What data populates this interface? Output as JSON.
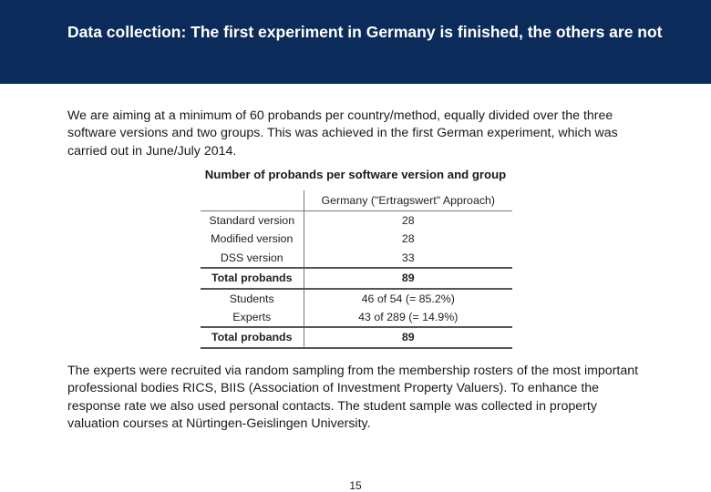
{
  "header": {
    "title": "Data collection: The first experiment in Germany is finished, the others are not",
    "background": "#0b2b5a"
  },
  "intro": "We are aiming at a minimum of 60 probands per country/method, equally divided over the three software versions and two groups. This was achieved in the first German experiment, which was carried out in June/July 2014.",
  "table": {
    "caption": "Number of probands per software version and group",
    "column_header": "Germany (\"Ertragswert\" Approach)",
    "rows": [
      {
        "label": "Standard version",
        "value": "28",
        "bold": false
      },
      {
        "label": "Modified version",
        "value": "28",
        "bold": false
      },
      {
        "label": "DSS version",
        "value": "33",
        "bold": false
      },
      {
        "label": "Total probands",
        "value": "89",
        "bold": true
      },
      {
        "label": "Students",
        "value": "46 of 54 (= 85.2%)",
        "bold": false
      },
      {
        "label": "Experts",
        "value": "43 of 289 (= 14.9%)",
        "bold": false
      },
      {
        "label": "Total probands",
        "value": "89",
        "bold": true
      }
    ]
  },
  "closing": "The experts were recruited via random sampling from the membership rosters of the most important professional bodies RICS, BIIS (Association of Investment Property Valuers). To enhance the response rate we also used personal contacts. The student sample was collected in property valuation courses at Nürtingen-Geislingen University.",
  "page_number": "15"
}
